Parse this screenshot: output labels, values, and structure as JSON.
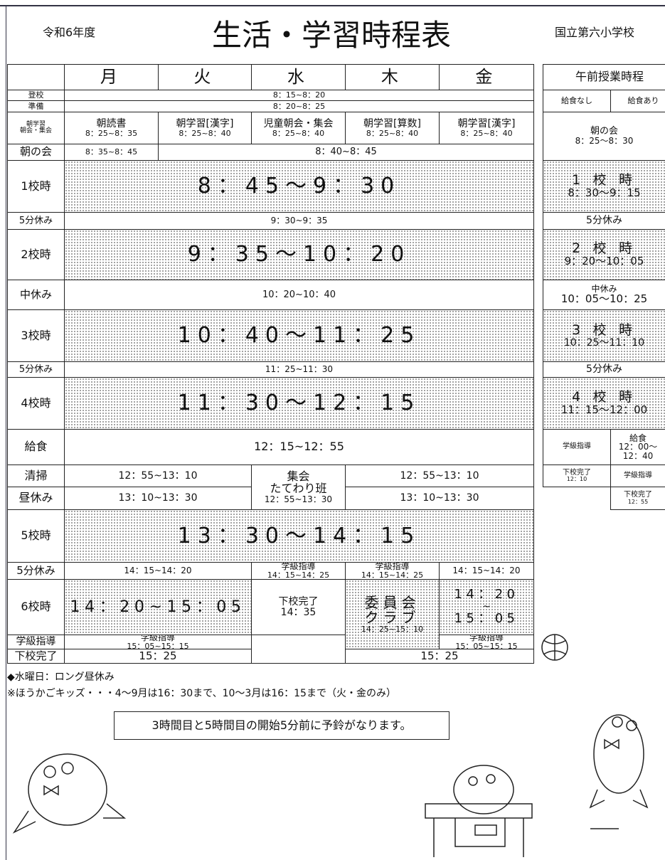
{
  "header": {
    "year": "令和6年度",
    "title": "生活・学習時程表",
    "school": "国立第六小学校"
  },
  "days": [
    "月",
    "火",
    "水",
    "木",
    "金"
  ],
  "rows": [
    {
      "label": [
        "登校"
      ],
      "cells": [
        [
          "8：15~8：20"
        ]
      ]
    },
    {
      "label": [
        "準備"
      ],
      "cells": [
        [
          "8：20~8：25"
        ]
      ]
    },
    {
      "label": [
        "朝学習",
        "朝会・集会"
      ],
      "cells": [
        [
          "朝読書",
          "8：25~8：35"
        ],
        [
          "朝学習[漢字]",
          "8：25~8：40"
        ],
        [
          "児童朝会・集会",
          "8：25~8：40"
        ],
        [
          "朝学習[算数]",
          "8：25~8：40"
        ],
        [
          "朝学習[漢字]",
          "8：25~8：40"
        ]
      ]
    },
    {
      "label": [
        "朝の会"
      ],
      "cells": [
        [
          "8：35~8：45"
        ],
        [
          "8：40~8：45"
        ]
      ]
    },
    {
      "label": [
        "1校時"
      ],
      "cells": [
        [
          "8：45～9：30"
        ]
      ]
    },
    {
      "label": [
        "5分休み"
      ],
      "cells": [
        [
          "9：30~9：35"
        ]
      ]
    },
    {
      "label": [
        "2校時"
      ],
      "cells": [
        [
          "9：35～10：20"
        ]
      ]
    },
    {
      "label": [
        "中休み"
      ],
      "cells": [
        [
          "10：20~10：40"
        ]
      ]
    },
    {
      "label": [
        "3校時"
      ],
      "cells": [
        [
          "10：40～11：25"
        ]
      ]
    },
    {
      "label": [
        "5分休み"
      ],
      "cells": [
        [
          "11：25~11：30"
        ]
      ]
    },
    {
      "label": [
        "4校時"
      ],
      "cells": [
        [
          "11：30～12：15"
        ]
      ]
    },
    {
      "label": [
        "給食"
      ],
      "cells": [
        [
          "12：15~12：55"
        ]
      ]
    },
    {
      "label": [
        "清掃"
      ],
      "cells": [
        [
          "12：55~13：10"
        ],
        [
          "集会",
          "たてわり班",
          "12：55~13：30"
        ],
        [
          "12：55~13：10"
        ]
      ]
    },
    {
      "label": [
        "昼休み"
      ],
      "cells": [
        [
          "13：10~13：30"
        ],
        [
          "13：10~13：30"
        ]
      ]
    },
    {
      "label": [
        "5校時"
      ],
      "cells": [
        [
          "13：30～14：15"
        ]
      ]
    },
    {
      "label": [
        "5分休み"
      ],
      "cells": [
        [
          "14：15~14：20"
        ],
        [
          "学級指導",
          "14：15~14：25"
        ],
        [
          "学級指導",
          "14：15~14：25"
        ],
        [
          "14：15~14：20"
        ]
      ]
    },
    {
      "label": [
        "6校時"
      ],
      "cells": [
        [
          "14：20~15：05"
        ],
        [
          "下校完了",
          "14：35"
        ],
        [
          "委員会",
          "クラブ",
          "14：25~15：10"
        ],
        [
          "14：20",
          "~",
          "15：05"
        ]
      ]
    },
    {
      "label": [
        "学級指導"
      ],
      "cells": [
        [
          "学級指導",
          "15：05~15：15"
        ],
        [
          "学級指導",
          "15：05~15：15"
        ]
      ]
    },
    {
      "label": [
        "下校完了"
      ],
      "cells": [
        [
          "15：25"
        ],
        [
          "15：25"
        ]
      ]
    }
  ],
  "morning": {
    "title": "午前授業時程",
    "columns": [
      "給食なし",
      "給食あり"
    ],
    "cells": [
      [
        "朝の会",
        "8：25～8：30"
      ],
      [
        "1 校 時",
        "8：30～9：15"
      ],
      [
        "5分休み"
      ],
      [
        "2 校 時",
        "9：20～10：05"
      ],
      [
        "中休み",
        "10：05～10：25"
      ],
      [
        "3 校 時",
        "10：25～11：10"
      ],
      [
        "5分休み"
      ],
      [
        "4 校 時",
        "11：15～12：00"
      ],
      [
        "学級指導"
      ],
      [
        "給食",
        "12：00～",
        "12：40"
      ],
      [
        "下校完了",
        "12：10"
      ],
      [
        "学級指導"
      ],
      [
        "下校完了",
        "12：55"
      ]
    ]
  },
  "notes": [
    "◆水曜日：ロング昼休み",
    "※ほうかごキッズ・・・4～9月は16：30まで、10～3月は16：15まで（火・金のみ）"
  ],
  "bell_notice": "3時間目と5時間目の開始5分前に予鈴がなります。"
}
